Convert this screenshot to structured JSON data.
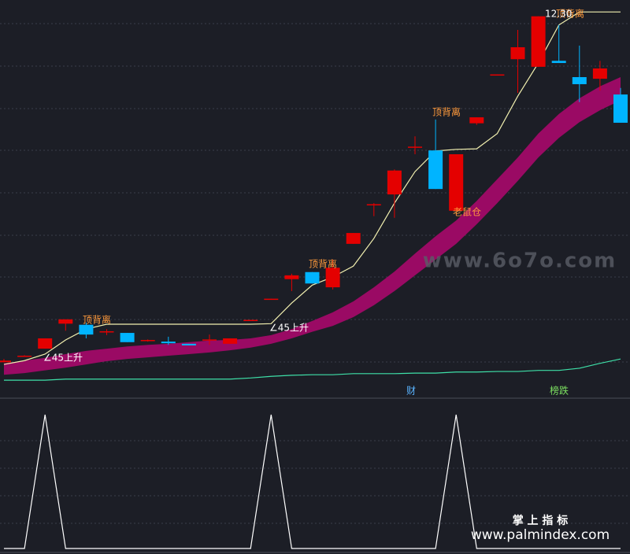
{
  "chart_data": [
    {
      "type": "candlestick",
      "open": [
        5.93,
        6.04,
        6.18,
        6.64,
        6.62,
        6.48,
        6.47,
        6.32,
        6.31,
        6.27,
        6.33,
        6.27,
        6.69,
        7.08,
        7.46,
        7.59,
        7.31,
        8.11,
        8.82,
        9.02,
        9.88,
        9.83,
        8.72,
        10.33,
        11.21,
        11.51,
        11.37,
        11.48,
        11.18,
        11.15,
        10.86
      ],
      "high": [
        5.99,
        6.06,
        6.37,
        6.72,
        6.66,
        6.54,
        6.47,
        6.35,
        6.4,
        6.27,
        6.44,
        6.37,
        6.71,
        7.1,
        7.56,
        7.59,
        7.82,
        8.31,
        8.86,
        9.48,
        10.09,
        10.4,
        9.76,
        10.44,
        11.23,
        12.05,
        12.3,
        12.14,
        11.76,
        11.48,
        10.98
      ],
      "low": [
        5.93,
        6.03,
        6.18,
        6.51,
        6.37,
        6.43,
        6.3,
        6.31,
        6.25,
        6.24,
        6.25,
        6.27,
        6.69,
        7.08,
        7.24,
        7.38,
        7.27,
        8.11,
        8.62,
        8.59,
        9.76,
        9.12,
        8.72,
        10.3,
        11.21,
        10.89,
        11.37,
        11.44,
        10.72,
        10.93,
        10.34
      ],
      "close": [
        5.96,
        6.05,
        6.37,
        6.72,
        6.44,
        6.5,
        6.3,
        6.34,
        6.28,
        6.24,
        6.35,
        6.37,
        6.71,
        7.1,
        7.53,
        7.38,
        7.67,
        8.31,
        8.84,
        9.46,
        9.9,
        9.12,
        9.76,
        10.44,
        11.23,
        11.73,
        12.3,
        11.44,
        11.05,
        11.34,
        10.34
      ],
      "up_color": "#e40000",
      "down_color": "#00b4ff",
      "ylim": [
        5.5,
        12.6
      ],
      "lines": [
        {
          "color": "#f2f0b0",
          "values": [
            5.89,
            5.96,
            6.08,
            6.34,
            6.54,
            6.63,
            6.63,
            6.63,
            6.63,
            6.63,
            6.63,
            6.63,
            6.63,
            6.64,
            7.02,
            7.35,
            7.5,
            7.7,
            8.21,
            8.86,
            9.44,
            9.82,
            9.85,
            9.86,
            10.14,
            10.83,
            11.44,
            12.14,
            12.38,
            12.38,
            12.38
          ]
        },
        {
          "color": "#3ee0a8",
          "values": [
            5.6,
            5.6,
            5.6,
            5.62,
            5.62,
            5.62,
            5.62,
            5.62,
            5.62,
            5.62,
            5.62,
            5.62,
            5.64,
            5.67,
            5.69,
            5.7,
            5.7,
            5.72,
            5.72,
            5.72,
            5.73,
            5.73,
            5.75,
            5.75,
            5.76,
            5.76,
            5.78,
            5.78,
            5.82,
            5.91,
            5.99
          ]
        }
      ],
      "band": {
        "color": "#9a0a64",
        "upper": [
          5.91,
          5.96,
          6.01,
          6.08,
          6.14,
          6.18,
          6.22,
          6.25,
          6.27,
          6.3,
          6.33,
          6.34,
          6.37,
          6.43,
          6.54,
          6.69,
          6.85,
          7.05,
          7.31,
          7.6,
          7.93,
          8.25,
          8.54,
          8.9,
          9.3,
          9.7,
          10.14,
          10.5,
          10.79,
          11.01,
          11.18
        ],
        "lower": [
          5.7,
          5.73,
          5.78,
          5.83,
          5.89,
          5.95,
          5.99,
          6.02,
          6.05,
          6.08,
          6.11,
          6.15,
          6.2,
          6.27,
          6.37,
          6.49,
          6.6,
          6.76,
          6.98,
          7.24,
          7.53,
          7.82,
          8.11,
          8.47,
          8.86,
          9.27,
          9.7,
          10.06,
          10.35,
          10.57,
          10.75
        ]
      },
      "annotations": [
        {
          "text": "∠45上升",
          "color": "#ffffff"
        },
        {
          "text": "∠45上升",
          "color": "#ffffff"
        },
        {
          "text": "顶背离",
          "color": "#ff9a3c"
        },
        {
          "text": "顶背离",
          "color": "#ff9a3c"
        },
        {
          "text": "顶背离",
          "color": "#ff9a3c"
        },
        {
          "text": "顶背离",
          "color": "#ff9a3c"
        },
        {
          "text": "老鼠仓",
          "color": "#ff9a3c"
        },
        {
          "text": "12.30",
          "color": "#ffffff"
        },
        {
          "text": "财",
          "color": "#5ab4ff"
        },
        {
          "text": "榜跌",
          "color": "#7ce060"
        }
      ]
    },
    {
      "type": "line",
      "color": "#ffffff",
      "ylim": [
        0,
        1
      ],
      "values": [
        0,
        0,
        1,
        0,
        0,
        0,
        0,
        0,
        0,
        0,
        0,
        0,
        0,
        1,
        0,
        0,
        0,
        0,
        0,
        0,
        0,
        0,
        1,
        0,
        0,
        0,
        0,
        0,
        0,
        0,
        0
      ]
    }
  ],
  "watermarks": [
    "www.6o7o.com",
    "掌 上 指 标",
    "www.palmindex.com"
  ]
}
